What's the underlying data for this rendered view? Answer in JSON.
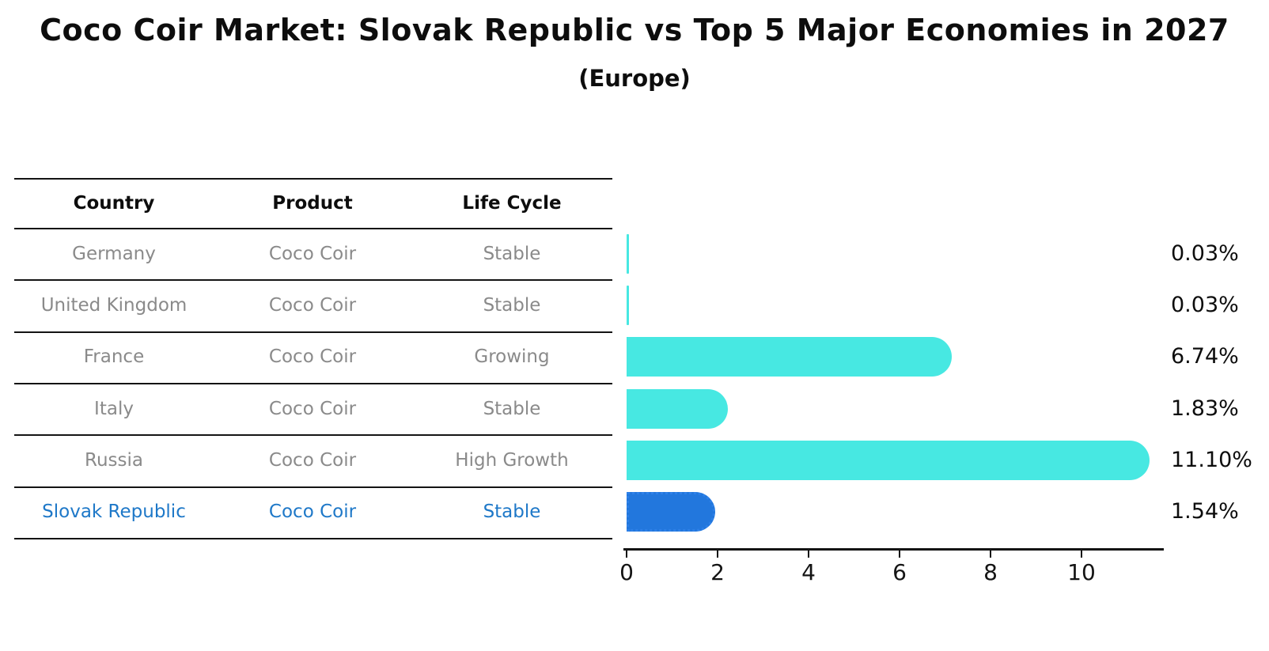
{
  "title": "Coco Coir Market: Slovak Republic vs Top 5 Major Economies in 2027",
  "subtitle": "(Europe)",
  "table": {
    "headers": [
      "Country",
      "Product",
      "Life Cycle"
    ],
    "rows": [
      {
        "country": "Germany",
        "product": "Coco Coir",
        "life_cycle": "Stable",
        "highlight": false
      },
      {
        "country": "United Kingdom",
        "product": "Coco Coir",
        "life_cycle": "Stable",
        "highlight": false
      },
      {
        "country": "France",
        "product": "Coco Coir",
        "life_cycle": "Growing",
        "highlight": false
      },
      {
        "country": "Italy",
        "product": "Coco Coir",
        "life_cycle": "Stable",
        "highlight": false
      },
      {
        "country": "Russia",
        "product": "Coco Coir",
        "life_cycle": "High Growth",
        "highlight": false
      },
      {
        "country": "Slovak Republic",
        "product": "Coco Coir",
        "life_cycle": "Stable",
        "highlight": true
      }
    ]
  },
  "chart_data": {
    "type": "bar",
    "orientation": "horizontal",
    "categories": [
      "Germany",
      "United Kingdom",
      "France",
      "Italy",
      "Russia",
      "Slovak Republic"
    ],
    "values": [
      0.03,
      0.03,
      6.74,
      1.83,
      11.1,
      1.54
    ],
    "value_labels": [
      "0.03%",
      "0.03%",
      "6.74%",
      "1.83%",
      "11.10%",
      "1.54%"
    ],
    "highlight_index": 5,
    "xticks": [
      0,
      2,
      4,
      6,
      8,
      10
    ],
    "xlim": [
      0,
      11.8
    ],
    "grid": false,
    "legend": "none",
    "colors": {
      "bar_default": "#47e8e2",
      "bar_highlight": "#2277dd",
      "highlight_text": "#1e78c8",
      "row_text": "#8a8a8a",
      "header_text": "#0d0d0d",
      "axis": "#141414"
    }
  }
}
